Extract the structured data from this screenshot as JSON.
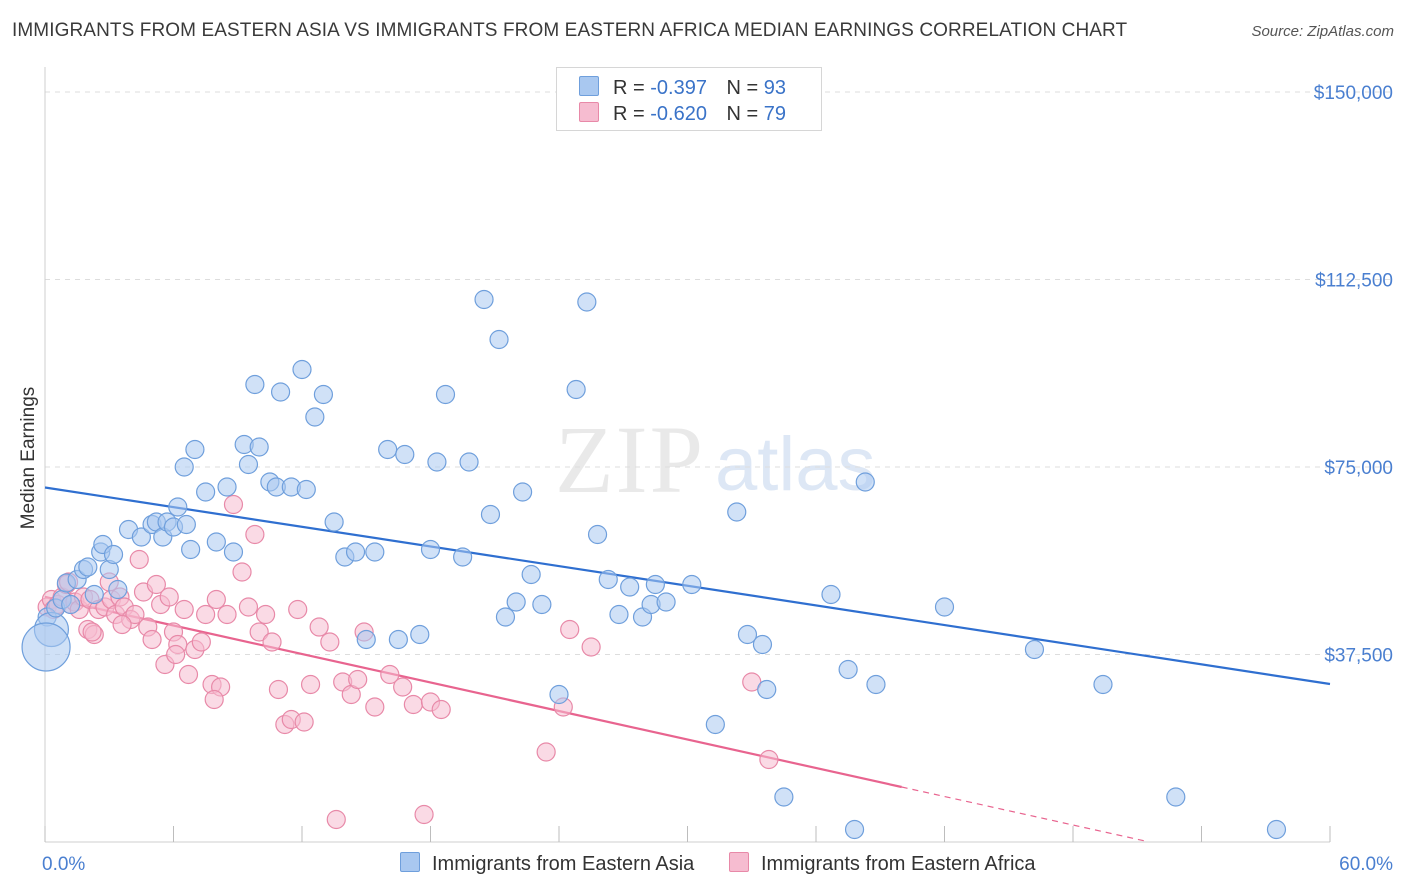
{
  "header": {
    "title": "IMMIGRANTS FROM EASTERN ASIA VS IMMIGRANTS FROM EASTERN AFRICA MEDIAN EARNINGS CORRELATION CHART",
    "source": "Source: ZipAtlas.com"
  },
  "watermark": {
    "zip": "ZIP",
    "atlas": "atlas"
  },
  "legend": {
    "rows": [
      {
        "r_label": "R =",
        "r_value": "-0.397",
        "n_label": "N =",
        "n_value": "93",
        "color": "#a9c8f0",
        "border": "#6f9fdc"
      },
      {
        "r_label": "R =",
        "r_value": "-0.620",
        "n_label": "N =",
        "n_value": "79",
        "color": "#f6bcd0",
        "border": "#e889a8"
      }
    ]
  },
  "colors": {
    "blue_fill": "#a9c8f0",
    "blue_stroke": "#6f9fdc",
    "blue_line": "#2f6fd0",
    "pink_fill": "#f6bcd0",
    "pink_stroke": "#e889a8",
    "pink_line": "#e8648f",
    "tick_text": "#4a7fd0",
    "grid": "#dddddd"
  },
  "chart_data": {
    "type": "scatter",
    "title": "IMMIGRANTS FROM EASTERN ASIA VS IMMIGRANTS FROM EASTERN AFRICA MEDIAN EARNINGS CORRELATION CHART",
    "xlabel": "",
    "ylabel": "Median Earnings",
    "xlim": [
      0,
      60
    ],
    "ylim": [
      0,
      153000
    ],
    "x_tick_labels": [
      "0.0%",
      "60.0%"
    ],
    "y_ticks": [
      37500,
      75000,
      112500,
      150000
    ],
    "y_tick_labels": [
      "$37,500",
      "$75,000",
      "$112,500",
      "$150,000"
    ],
    "grid": true,
    "legend_position": "top-center",
    "series": [
      {
        "name": "Immigrants from Eastern Asia",
        "r": -0.397,
        "n": 93,
        "trend": {
          "x": [
            0,
            60
          ],
          "y": [
            70900,
            31600
          ]
        },
        "points": [
          [
            0.1,
            45000
          ],
          [
            0.3,
            42500
          ],
          [
            0.5,
            46800
          ],
          [
            0.8,
            48500
          ],
          [
            1.0,
            51800
          ],
          [
            1.2,
            47500
          ],
          [
            1.5,
            52500
          ],
          [
            1.8,
            54500
          ],
          [
            2.0,
            55000
          ],
          [
            2.3,
            49500
          ],
          [
            2.6,
            58000
          ],
          [
            2.7,
            59500
          ],
          [
            3.0,
            54500
          ],
          [
            3.2,
            57500
          ],
          [
            3.4,
            50500
          ],
          [
            3.9,
            62500
          ],
          [
            4.5,
            61000
          ],
          [
            5.0,
            63500
          ],
          [
            5.2,
            64000
          ],
          [
            5.5,
            61000
          ],
          [
            5.7,
            64000
          ],
          [
            6.0,
            63000
          ],
          [
            6.2,
            67000
          ],
          [
            6.6,
            63500
          ],
          [
            6.8,
            58500
          ],
          [
            6.5,
            75000
          ],
          [
            7.0,
            78500
          ],
          [
            7.5,
            70000
          ],
          [
            8.0,
            60000
          ],
          [
            8.5,
            71000
          ],
          [
            8.8,
            58000
          ],
          [
            9.3,
            79500
          ],
          [
            9.5,
            75500
          ],
          [
            9.8,
            91500
          ],
          [
            10.0,
            79000
          ],
          [
            10.5,
            72000
          ],
          [
            10.8,
            71000
          ],
          [
            11.0,
            90000
          ],
          [
            11.5,
            71000
          ],
          [
            12.0,
            94500
          ],
          [
            12.2,
            70500
          ],
          [
            12.6,
            85000
          ],
          [
            13.0,
            89500
          ],
          [
            13.5,
            64000
          ],
          [
            14.0,
            57000
          ],
          [
            14.5,
            58000
          ],
          [
            15.0,
            40500
          ],
          [
            15.4,
            58000
          ],
          [
            16.0,
            78500
          ],
          [
            16.5,
            40500
          ],
          [
            16.8,
            77500
          ],
          [
            17.5,
            41500
          ],
          [
            18.0,
            58500
          ],
          [
            18.3,
            76000
          ],
          [
            18.7,
            89500
          ],
          [
            19.5,
            57000
          ],
          [
            19.8,
            76000
          ],
          [
            20.5,
            108500
          ],
          [
            20.8,
            65500
          ],
          [
            21.2,
            100500
          ],
          [
            21.5,
            45000
          ],
          [
            22.0,
            48000
          ],
          [
            22.3,
            70000
          ],
          [
            22.7,
            53500
          ],
          [
            23.2,
            47500
          ],
          [
            24.0,
            29500
          ],
          [
            24.8,
            90500
          ],
          [
            25.3,
            108000
          ],
          [
            25.8,
            61500
          ],
          [
            26.3,
            52500
          ],
          [
            26.8,
            45500
          ],
          [
            27.3,
            51000
          ],
          [
            27.9,
            45000
          ],
          [
            28.3,
            47500
          ],
          [
            28.5,
            51500
          ],
          [
            29.0,
            48000
          ],
          [
            30.2,
            51500
          ],
          [
            31.3,
            23500
          ],
          [
            32.3,
            66000
          ],
          [
            32.8,
            41500
          ],
          [
            33.5,
            39500
          ],
          [
            33.7,
            30500
          ],
          [
            34.5,
            9000
          ],
          [
            36.7,
            49500
          ],
          [
            37.5,
            34500
          ],
          [
            37.8,
            2500
          ],
          [
            38.8,
            31500
          ],
          [
            38.3,
            72000
          ],
          [
            42.0,
            47000
          ],
          [
            46.2,
            38500
          ],
          [
            49.4,
            31500
          ],
          [
            52.8,
            9000
          ],
          [
            57.5,
            2500
          ],
          [
            0.05,
            39000
          ]
        ]
      },
      {
        "name": "Immigrants from Eastern Africa",
        "r": -0.62,
        "n": 79,
        "trend": {
          "x": [
            0,
            40
          ],
          "y": [
            49000,
            11000
          ]
        },
        "points": [
          [
            0.1,
            47000
          ],
          [
            0.3,
            48500
          ],
          [
            0.4,
            46500
          ],
          [
            0.6,
            47500
          ],
          [
            0.8,
            49000
          ],
          [
            1.0,
            51500
          ],
          [
            1.2,
            47500
          ],
          [
            1.4,
            48000
          ],
          [
            1.6,
            46500
          ],
          [
            1.8,
            49000
          ],
          [
            2.0,
            42500
          ],
          [
            2.1,
            48500
          ],
          [
            2.3,
            41500
          ],
          [
            2.5,
            46500
          ],
          [
            2.8,
            47000
          ],
          [
            3.0,
            52000
          ],
          [
            3.1,
            48500
          ],
          [
            3.3,
            45500
          ],
          [
            3.5,
            49000
          ],
          [
            3.7,
            47000
          ],
          [
            4.0,
            44500
          ],
          [
            4.2,
            45500
          ],
          [
            4.4,
            56500
          ],
          [
            4.6,
            50000
          ],
          [
            4.8,
            43000
          ],
          [
            5.0,
            40500
          ],
          [
            5.2,
            51500
          ],
          [
            5.4,
            47500
          ],
          [
            5.6,
            35500
          ],
          [
            5.8,
            49000
          ],
          [
            6.0,
            42000
          ],
          [
            6.2,
            39500
          ],
          [
            6.5,
            46500
          ],
          [
            6.7,
            33500
          ],
          [
            7.0,
            38500
          ],
          [
            7.3,
            40000
          ],
          [
            7.5,
            45500
          ],
          [
            7.8,
            31500
          ],
          [
            8.0,
            48500
          ],
          [
            8.2,
            31000
          ],
          [
            8.5,
            45500
          ],
          [
            8.8,
            67500
          ],
          [
            9.2,
            54000
          ],
          [
            9.5,
            47000
          ],
          [
            9.8,
            61500
          ],
          [
            10.0,
            42000
          ],
          [
            10.3,
            45500
          ],
          [
            10.6,
            40000
          ],
          [
            10.9,
            30500
          ],
          [
            11.2,
            23500
          ],
          [
            11.5,
            24500
          ],
          [
            11.8,
            46500
          ],
          [
            12.1,
            24000
          ],
          [
            12.4,
            31500
          ],
          [
            12.8,
            43000
          ],
          [
            13.3,
            40000
          ],
          [
            13.6,
            4500
          ],
          [
            13.9,
            32000
          ],
          [
            14.3,
            29500
          ],
          [
            14.6,
            32500
          ],
          [
            14.9,
            42000
          ],
          [
            15.4,
            27000
          ],
          [
            16.1,
            33500
          ],
          [
            16.7,
            31000
          ],
          [
            17.2,
            27500
          ],
          [
            17.7,
            5500
          ],
          [
            18.0,
            28000
          ],
          [
            18.5,
            26500
          ],
          [
            23.4,
            18000
          ],
          [
            24.2,
            27000
          ],
          [
            24.5,
            42500
          ],
          [
            25.5,
            39000
          ],
          [
            33.0,
            32000
          ],
          [
            33.8,
            16500
          ],
          [
            2.2,
            42000
          ],
          [
            3.6,
            43500
          ],
          [
            6.1,
            37500
          ],
          [
            7.9,
            28500
          ],
          [
            1.1,
            52000
          ]
        ]
      }
    ]
  },
  "bottom_legend": {
    "items": [
      {
        "label": "Immigrants from Eastern Asia",
        "color": "#a9c8f0",
        "border": "#6f9fdc"
      },
      {
        "label": "Immigrants from Eastern Africa",
        "color": "#f6bcd0",
        "border": "#e889a8"
      }
    ]
  }
}
